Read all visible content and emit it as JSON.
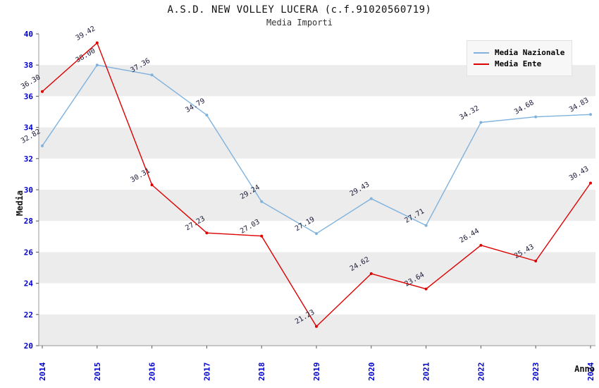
{
  "header": {
    "title": "A.S.D. NEW VOLLEY LUCERA (c.f.91020560719)",
    "subtitle": "Media Importi"
  },
  "legend": {
    "items": [
      {
        "label": "Media Nazionale",
        "color": "#7fb2dd"
      },
      {
        "label": "Media Ente",
        "color": "#dd0000"
      }
    ]
  },
  "chart_data": {
    "type": "line",
    "x": [
      2014,
      2015,
      2016,
      2017,
      2018,
      2019,
      2020,
      2021,
      2022,
      2023,
      2024
    ],
    "series": [
      {
        "name": "Media Nazionale",
        "color": "#7fb2dd",
        "values": [
          32.82,
          38.0,
          37.36,
          34.79,
          29.24,
          27.19,
          29.43,
          27.71,
          34.32,
          34.68,
          34.83
        ]
      },
      {
        "name": "Media Ente",
        "color": "#dd0000",
        "values": [
          36.3,
          39.42,
          30.31,
          27.23,
          27.03,
          21.23,
          24.62,
          23.64,
          26.44,
          25.43,
          30.43
        ]
      }
    ],
    "title": "A.S.D. NEW VOLLEY LUCERA (c.f.91020560719)",
    "subtitle": "Media Importi",
    "xlabel": "Anno",
    "ylabel": "Media",
    "ylim": [
      20,
      40
    ],
    "y_tick_step": 2,
    "grid": "alternating-bands",
    "legend_position": "top-right",
    "colors": {
      "tick_label": "#0000cd",
      "point_label": "#1b1b3a",
      "band_gray": "#ececec",
      "axis": "#999999"
    }
  }
}
